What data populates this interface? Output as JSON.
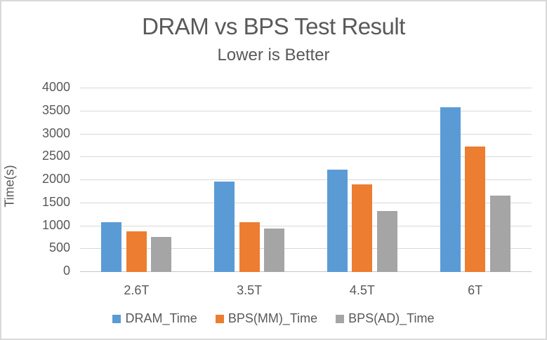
{
  "frame": {
    "background": "#FFFFFF",
    "border_color": "#D9D9D9"
  },
  "chart_data": {
    "type": "bar",
    "title": "DRAM vs BPS Test Result",
    "subtitle": "Lower is Better",
    "xlabel": "",
    "ylabel": "Time(s)",
    "ylim": [
      0,
      4000
    ],
    "ytick_step": 500,
    "grid": true,
    "legend_position": "bottom",
    "categories": [
      "2.6T",
      "3.5T",
      "4.5T",
      "6T"
    ],
    "series": [
      {
        "name": "DRAM_Time",
        "color": "#5B9BD5",
        "values": [
          1080,
          1975,
          2230,
          3590
        ]
      },
      {
        "name": "BPS(MM)_Time",
        "color": "#ED7D31",
        "values": [
          880,
          1080,
          1910,
          2740
        ]
      },
      {
        "name": "BPS(AD)_Time",
        "color": "#A5A5A5",
        "values": [
          760,
          950,
          1330,
          1670
        ]
      }
    ],
    "colors": {
      "text": "#595959",
      "gridline": "#D9D9D9",
      "axis_line": "#C6C6C6"
    }
  }
}
